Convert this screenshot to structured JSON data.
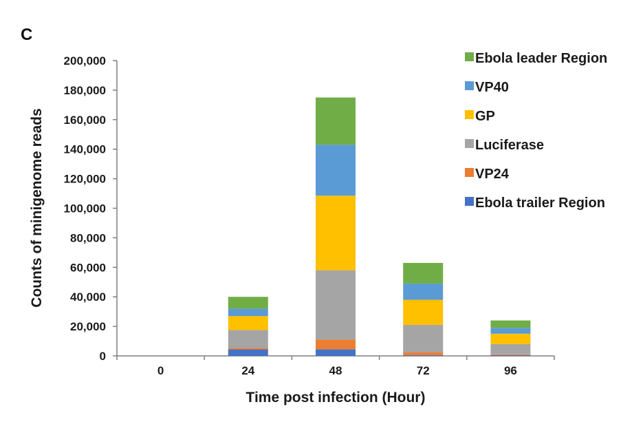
{
  "chart_data": {
    "type": "bar",
    "stacked": true,
    "panel_label": "C",
    "title": "",
    "xlabel": "Time post infection (Hour)",
    "ylabel": "Counts of minigenome reads",
    "categories": [
      "0",
      "24",
      "48",
      "72",
      "96"
    ],
    "ylim": [
      0,
      200000
    ],
    "yticks": [
      0,
      20000,
      40000,
      60000,
      80000,
      100000,
      120000,
      140000,
      160000,
      180000,
      200000
    ],
    "ytick_labels": [
      "0",
      "20,000",
      "40,000",
      "60,000",
      "80,000",
      "100,000",
      "120,000",
      "140,000",
      "160,000",
      "180,000",
      "200,000"
    ],
    "legend_position": "top-right",
    "series": [
      {
        "name": "Ebola trailer Region",
        "color": "#4472C4",
        "values": [
          0,
          4500,
          4500,
          500,
          500
        ]
      },
      {
        "name": "VP24",
        "color": "#ED7D31",
        "values": [
          0,
          1000,
          6500,
          2000,
          500
        ]
      },
      {
        "name": "Luciferase",
        "color": "#A5A5A5",
        "values": [
          0,
          12000,
          47000,
          18500,
          7000
        ]
      },
      {
        "name": "GP",
        "color": "#FFC000",
        "values": [
          0,
          9500,
          50500,
          17000,
          7000
        ]
      },
      {
        "name": "VP40",
        "color": "#5B9BD5",
        "values": [
          0,
          5000,
          34500,
          11000,
          4000
        ]
      },
      {
        "name": "Ebola leader Region",
        "color": "#70AD47",
        "values": [
          0,
          8000,
          32000,
          14000,
          5000
        ]
      }
    ]
  }
}
